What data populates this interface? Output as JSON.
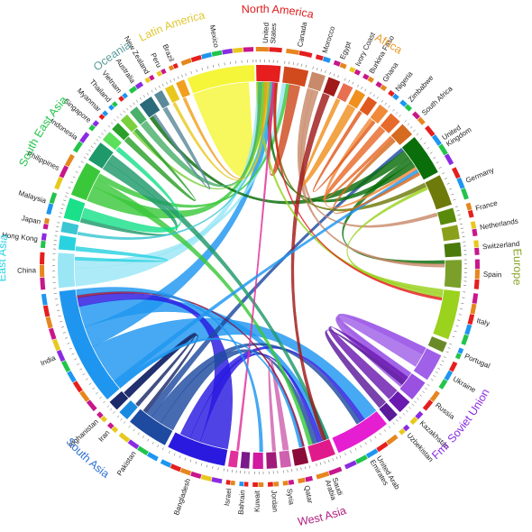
{
  "regions": [
    {
      "name": "North America",
      "color": "#e01a1a",
      "text_color": "#e01a1a",
      "countries": [
        "United States",
        "Canada"
      ]
    },
    {
      "name": "Africa",
      "color": "#e6861e",
      "text_color": "#e69a2a",
      "countries": [
        "Morocco",
        "Egypt",
        "Ivory Coast",
        "Burkina Faso",
        "Ghana",
        "Nigeria",
        "Zimbabwe",
        "South Africa"
      ]
    },
    {
      "name": "Europe",
      "color": "#6e8b1e",
      "text_color": "#8aa52a",
      "countries": [
        "United Kingdom",
        "Germany",
        "France",
        "Netherlands",
        "Switzerland",
        "Spain",
        "Italy",
        "Portugal"
      ]
    },
    {
      "name": "Fmr Soviet Union",
      "color": "#8a2be2",
      "text_color": "#8a2be2",
      "countries": [
        "Ukraine",
        "Russia",
        "Kazakhstan",
        "Uzbekistan"
      ]
    },
    {
      "name": "West Asia",
      "color": "#c8168c",
      "text_color": "#b0207e",
      "countries": [
        "United Arab Emirates",
        "Saudi Arabia",
        "Qatar",
        "Syria",
        "Jordan",
        "Kuwait",
        "Bahrain",
        "Israel"
      ]
    },
    {
      "name": "South Asia",
      "color": "#1e73d2",
      "text_color": "#2a6fd0",
      "countries": [
        "Bangladesh",
        "Pakistan",
        "Iran",
        "Afghanistan",
        "India"
      ]
    },
    {
      "name": "East Asia",
      "color": "#3fd6e8",
      "text_color": "#2ad4e6",
      "countries": [
        "China",
        "Hong Kong",
        "Japan"
      ]
    },
    {
      "name": "South East Asia",
      "color": "#22c44a",
      "text_color": "#22c44a",
      "countries": [
        "Malaysia",
        "Philippines",
        "Indonesia",
        "Singapore",
        "Myanmar",
        "Thailand",
        "Vietnam"
      ]
    },
    {
      "name": "Oceania",
      "color": "#3a8a8a",
      "text_color": "#5a9a9a",
      "countries": [
        "Australia",
        "New Zealand"
      ]
    },
    {
      "name": "Latin America",
      "color": "#e8e81e",
      "text_color": "#e0c832",
      "countries": [
        "Peru",
        "Brazil",
        "Mexico"
      ]
    }
  ],
  "countries": [
    {
      "name": "United States",
      "lines": [
        "United",
        "States"
      ],
      "color": "#e61e1e",
      "start": -22,
      "end": 6
    },
    {
      "name": "Canada",
      "lines": [
        "Canada"
      ],
      "color": "#d04a1e",
      "start": 7,
      "end": 14
    },
    {
      "name": "Morocco",
      "lines": [
        "Morocco"
      ],
      "color": "#c88a6a",
      "start": 15,
      "end": 19
    },
    {
      "name": "Egypt",
      "lines": [
        "Egypt"
      ],
      "color": "#a01a1a",
      "start": 20,
      "end": 23.5
    },
    {
      "name": "Ivory Coast",
      "lines": [
        "Ivory Coast"
      ],
      "color": "#e87050",
      "start": 24.5,
      "end": 27.5
    },
    {
      "name": "Burkina Faso",
      "lines": [
        "Burkina Faso"
      ],
      "color": "#f0901e",
      "start": 28.5,
      "end": 31.5
    },
    {
      "name": "Ghana",
      "lines": [
        "Ghana"
      ],
      "color": "#e05a1e",
      "start": 32.5,
      "end": 35.5
    },
    {
      "name": "Nigeria",
      "lines": [
        "Nigeria"
      ],
      "color": "#f08a3a",
      "start": 36.5,
      "end": 39.5
    },
    {
      "name": "Zimbabwe",
      "lines": [
        "Zimbabwe"
      ],
      "color": "#e86a2a",
      "start": 40.5,
      "end": 44
    },
    {
      "name": "South Africa",
      "lines": [
        "South Africa"
      ],
      "color": "#d66a1e",
      "start": 45,
      "end": 49
    },
    {
      "name": "United Kingdom",
      "lines": [
        "United",
        "Kingdom"
      ],
      "color": "#0a6e0a",
      "start": 50,
      "end": 62
    },
    {
      "name": "Germany",
      "lines": [
        "Germany"
      ],
      "color": "#6e7a0a",
      "start": 63,
      "end": 72
    },
    {
      "name": "France",
      "lines": [
        "France"
      ],
      "color": "#5a8a0a",
      "start": 73,
      "end": 77
    },
    {
      "name": "Netherlands",
      "lines": [
        "Netherlands"
      ],
      "color": "#8aa01a",
      "start": 78,
      "end": 82
    },
    {
      "name": "Switzerland",
      "lines": [
        "Switzerland"
      ],
      "color": "#4a7a0a",
      "start": 83,
      "end": 87
    },
    {
      "name": "Spain",
      "lines": [
        "Spain"
      ],
      "color": "#7aa02a",
      "start": 88,
      "end": 96
    },
    {
      "name": "Italy",
      "lines": [
        "Italy"
      ],
      "color": "#9ad21e",
      "start": 97,
      "end": 111
    },
    {
      "name": "Portugal",
      "lines": [
        "Portugal"
      ],
      "color": "#6a8a2a",
      "start": 112,
      "end": 115
    },
    {
      "name": "Ukraine",
      "lines": [
        "Ukraine"
      ],
      "color": "#a060e8",
      "start": 116,
      "end": 124
    },
    {
      "name": "Russia",
      "lines": [
        "Russia"
      ],
      "color": "#9a50e0",
      "start": 125,
      "end": 131
    },
    {
      "name": "Kazakhstan",
      "lines": [
        "Kazakhstan"
      ],
      "color": "#6a1ab0",
      "start": 132,
      "end": 136
    },
    {
      "name": "Uzbekistan",
      "lines": [
        "Uzbekistan"
      ],
      "color": "#5a1a9a",
      "start": 137,
      "end": 140
    },
    {
      "name": "United Arab Emirates",
      "lines": [
        "United Arab",
        "Emirates"
      ],
      "color": "#e61ed2",
      "start": 141,
      "end": 157
    },
    {
      "name": "Saudi Arabia",
      "lines": [
        "Saudi",
        "Arabia"
      ],
      "color": "#e01a8a",
      "start": 158,
      "end": 165
    },
    {
      "name": "Qatar",
      "lines": [
        "Qatar"
      ],
      "color": "#8a0a3a",
      "start": 166,
      "end": 170
    },
    {
      "name": "Syria",
      "lines": [
        "Syria"
      ],
      "color": "#d060b0",
      "start": 171,
      "end": 174
    },
    {
      "name": "Jordan",
      "lines": [
        "Jordan"
      ],
      "color": "#a01a7a",
      "start": 175,
      "end": 178
    },
    {
      "name": "Kuwait",
      "lines": [
        "Kuwait"
      ],
      "color": "#d01aa0",
      "start": 179,
      "end": 182
    },
    {
      "name": "Bahrain",
      "lines": [
        "Bahrain"
      ],
      "color": "#7a1a8a",
      "start": 183,
      "end": 185.5
    },
    {
      "name": "Israel",
      "lines": [
        "Israel"
      ],
      "color": "#e0309a",
      "start": 186.5,
      "end": 189
    },
    {
      "name": "Bangladesh",
      "lines": [
        "Bangladesh"
      ],
      "color": "#2a1ae0",
      "start": 190,
      "end": 207
    },
    {
      "name": "Pakistan",
      "lines": [
        "Pakistan"
      ],
      "color": "#1e4aa0",
      "start": 208,
      "end": 220
    },
    {
      "name": "Iran",
      "lines": [
        "Iran"
      ],
      "color": "#1a8ae0",
      "start": 221,
      "end": 224
    },
    {
      "name": "Afghanistan",
      "lines": [
        "Afghanistan"
      ],
      "color": "#1a2a6a",
      "start": 225,
      "end": 228
    },
    {
      "name": "India",
      "lines": [
        "India"
      ],
      "color": "#1e96f0",
      "start": 229,
      "end": 263
    },
    {
      "name": "China",
      "lines": [
        "China"
      ],
      "color": "#9ae6f5",
      "start": 264,
      "end": 274
    },
    {
      "name": "Hong Kong",
      "lines": [
        "Hong Kong"
      ],
      "color": "#2ad2e0",
      "start": 275,
      "end": 279
    },
    {
      "name": "Japan",
      "lines": [
        "Japan"
      ],
      "color": "#3ac6d2",
      "start": 280,
      "end": 283
    },
    {
      "name": "Malaysia",
      "lines": [
        "Malaysia"
      ],
      "color": "#1ae08a",
      "start": 284,
      "end": 290
    },
    {
      "name": "Philippines",
      "lines": [
        "Philippines"
      ],
      "color": "#3ac83a",
      "start": 291,
      "end": 301
    },
    {
      "name": "Indonesia",
      "lines": [
        "Indonesia"
      ],
      "color": "#1e9a6a",
      "start": 302,
      "end": 308
    },
    {
      "name": "Singapore",
      "lines": [
        "Singapore"
      ],
      "color": "#5ae05a",
      "start": 309,
      "end": 312
    },
    {
      "name": "Myanmar",
      "lines": [
        "Myanmar"
      ],
      "color": "#2aa02a",
      "start": 313,
      "end": 315.5
    },
    {
      "name": "Thailand",
      "lines": [
        "Thailand"
      ],
      "color": "#7ad03a",
      "start": 316.5,
      "end": 319
    },
    {
      "name": "Vietnam",
      "lines": [
        "Vietnam"
      ],
      "color": "#4ab06a",
      "start": 320,
      "end": 322.5
    },
    {
      "name": "Australia",
      "lines": [
        "Australia"
      ],
      "color": "#2a6a7a",
      "start": 323.5,
      "end": 327.5
    },
    {
      "name": "New Zealand",
      "lines": [
        "New Zealand"
      ],
      "color": "#5a8a9a",
      "start": 328.5,
      "end": 331
    },
    {
      "name": "Peru",
      "lines": [
        "Peru"
      ],
      "color": "#e8c81e",
      "start": 332,
      "end": 334.5
    },
    {
      "name": "Brazil",
      "lines": [
        "Brazil"
      ],
      "color": "#f0a01e",
      "start": 335.5,
      "end": 338
    }
  ],
  "extra_country": {
    "name": "Mexico",
    "lines": [
      "Mexico"
    ],
    "color": "#f5f53a",
    "start": 339,
    "end": 337.99
  },
  "flows": [
    {
      "from": "Mexico",
      "to": "United States",
      "value": 12,
      "color": "#f5f53a"
    },
    {
      "from": "India",
      "to": "United Arab Emirates",
      "value": 7,
      "color": "#1e96f0"
    },
    {
      "from": "India",
      "to": "United States",
      "value": 3,
      "color": "#1e96f0"
    },
    {
      "from": "India",
      "to": "Saudi Arabia",
      "value": 3,
      "color": "#1e96f0"
    },
    {
      "from": "China",
      "to": "United States",
      "value": 2.5,
      "color": "#9ae6f5"
    },
    {
      "from": "China",
      "to": "Canada",
      "value": 1.2,
      "color": "#9ae6f5"
    },
    {
      "from": "Bangladesh",
      "to": "India",
      "value": 4,
      "color": "#2a1ae0"
    },
    {
      "from": "Bangladesh",
      "to": "Saudi Arabia",
      "value": 1.5,
      "color": "#2a1ae0"
    },
    {
      "from": "Bangladesh",
      "to": "United Arab Emirates",
      "value": 1.5,
      "color": "#2a1ae0"
    },
    {
      "from": "Pakistan",
      "to": "Saudi Arabia",
      "value": 2,
      "color": "#1e4aa0"
    },
    {
      "from": "Pakistan",
      "to": "United Arab Emirates",
      "value": 1.5,
      "color": "#1e4aa0"
    },
    {
      "from": "Pakistan",
      "to": "United Kingdom",
      "value": 1,
      "color": "#1e4aa0"
    },
    {
      "from": "Philippines",
      "to": "United States",
      "value": 2.2,
      "color": "#3ac83a"
    },
    {
      "from": "Philippines",
      "to": "Saudi Arabia",
      "value": 1.2,
      "color": "#3ac83a"
    },
    {
      "from": "Philippines",
      "to": "Canada",
      "value": 0.8,
      "color": "#3ac83a"
    },
    {
      "from": "Indonesia",
      "to": "Malaysia",
      "value": 1.2,
      "color": "#1e9a6a"
    },
    {
      "from": "Indonesia",
      "to": "Saudi Arabia",
      "value": 1.2,
      "color": "#1e9a6a"
    },
    {
      "from": "Malaysia",
      "to": "Singapore",
      "value": 1.5,
      "color": "#1ae08a"
    },
    {
      "from": "United Kingdom",
      "to": "Australia",
      "value": 1.2,
      "color": "#0a6e0a"
    },
    {
      "from": "United Kingdom",
      "to": "Spain",
      "value": 0.8,
      "color": "#0a6e0a"
    },
    {
      "from": "United Kingdom",
      "to": "United States",
      "value": 0.8,
      "color": "#0a6e0a"
    },
    {
      "from": "Canada",
      "to": "United States",
      "value": 1.5,
      "color": "#d04a1e"
    },
    {
      "from": "Russia",
      "to": "Ukraine",
      "value": 3,
      "color": "#9a50e0"
    },
    {
      "from": "Ukraine",
      "to": "Russia",
      "value": 3,
      "color": "#a060e8"
    },
    {
      "from": "Kazakhstan",
      "to": "Russia",
      "value": 2,
      "color": "#6a1ab0"
    },
    {
      "from": "Uzbekistan",
      "to": "Russia",
      "value": 1.2,
      "color": "#5a1a9a"
    },
    {
      "from": "Morocco",
      "to": "Spain",
      "value": 0.8,
      "color": "#c88a6a"
    },
    {
      "from": "Morocco",
      "to": "France",
      "value": 0.8,
      "color": "#c88a6a"
    },
    {
      "from": "Burkina Faso",
      "to": "Ivory Coast",
      "value": 1.2,
      "color": "#f0901e"
    },
    {
      "from": "Zimbabwe",
      "to": "South Africa",
      "value": 1,
      "color": "#e86a2a"
    },
    {
      "from": "Egypt",
      "to": "Saudi Arabia",
      "value": 1,
      "color": "#a01a1a"
    },
    {
      "from": "Nigeria",
      "to": "United Kingdom",
      "value": 0.6,
      "color": "#f08a3a"
    },
    {
      "from": "Germany",
      "to": "United States",
      "value": 0.6,
      "color": "#6e7a0a"
    },
    {
      "from": "Italy",
      "to": "Germany",
      "value": 0.6,
      "color": "#9ad21e"
    },
    {
      "from": "Italy",
      "to": "United States",
      "value": 0.6,
      "color": "#9ad21e"
    },
    {
      "from": "Syria",
      "to": "Jordan",
      "value": 0.8,
      "color": "#d060b0"
    },
    {
      "from": "Afghanistan",
      "to": "Iran",
      "value": 1,
      "color": "#1a2a6a"
    },
    {
      "from": "Afghanistan",
      "to": "Pakistan",
      "value": 1,
      "color": "#1a2a6a"
    },
    {
      "from": "Vietnam",
      "to": "United States",
      "value": 1,
      "color": "#4ab06a"
    },
    {
      "from": "Thailand",
      "to": "United States",
      "value": 0.4,
      "color": "#7ad03a"
    },
    {
      "from": "Myanmar",
      "to": "Thailand",
      "value": 0.8,
      "color": "#2aa02a"
    },
    {
      "from": "Brazil",
      "to": "United States",
      "value": 0.4,
      "color": "#f0a01e"
    },
    {
      "from": "Peru",
      "to": "United States",
      "value": 0.4,
      "color": "#e8c81e"
    },
    {
      "from": "New Zealand",
      "to": "Australia",
      "value": 0.6,
      "color": "#5a8a9a"
    },
    {
      "from": "Hong Kong",
      "to": "China",
      "value": 0.6,
      "color": "#2ad2e0"
    },
    {
      "from": "Japan",
      "to": "United States",
      "value": 0.4,
      "color": "#3ac6d2"
    },
    {
      "from": "Qatar",
      "to": "India",
      "value": 0.3,
      "color": "#8a0a3a"
    },
    {
      "from": "Israel",
      "to": "United States",
      "value": 0.3,
      "color": "#e0309a"
    },
    {
      "from": "United States",
      "to": "Italy",
      "value": 0.3,
      "color": "#e61e1e"
    },
    {
      "from": "India",
      "to": "Kuwait",
      "value": 0.8,
      "color": "#1e96f0"
    },
    {
      "from": "India",
      "to": "Qatar",
      "value": 0.6,
      "color": "#1e96f0"
    },
    {
      "from": "India",
      "to": "United Kingdom",
      "value": 0.8,
      "color": "#1e96f0"
    },
    {
      "from": "South Africa",
      "to": "United Kingdom",
      "value": 0.5,
      "color": "#d66a1e"
    },
    {
      "from": "Ghana",
      "to": "Nigeria",
      "value": 0.5,
      "color": "#e05a1e"
    }
  ],
  "colors": {
    "background": "#ffffff",
    "label": "#222222"
  }
}
